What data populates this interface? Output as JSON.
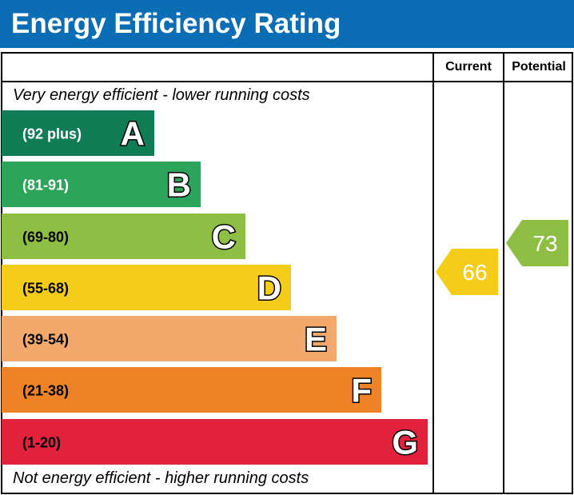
{
  "title": "Energy Efficiency Rating",
  "columns": {
    "current": "Current",
    "potential": "Potential"
  },
  "top_note": "Very energy efficient - lower running costs",
  "bottom_note": "Not energy efficient - higher running costs",
  "chart_data": {
    "type": "bar",
    "bands": [
      {
        "letter": "A",
        "range": "(92 plus)",
        "color": "#117d57"
      },
      {
        "letter": "B",
        "range": "(81-91)",
        "color": "#2ca55a"
      },
      {
        "letter": "C",
        "range": "(69-80)",
        "color": "#8fbe44"
      },
      {
        "letter": "D",
        "range": "(55-68)",
        "color": "#f5cc1a"
      },
      {
        "letter": "E",
        "range": "(39-54)",
        "color": "#f2a96b"
      },
      {
        "letter": "F",
        "range": "(21-38)",
        "color": "#ee8227"
      },
      {
        "letter": "G",
        "range": "(1-20)",
        "color": "#e2213c"
      }
    ],
    "current": {
      "value": 66,
      "band": "D",
      "color": "#f5cc1a"
    },
    "potential": {
      "value": 73,
      "band": "C",
      "color": "#8fbe44"
    }
  }
}
